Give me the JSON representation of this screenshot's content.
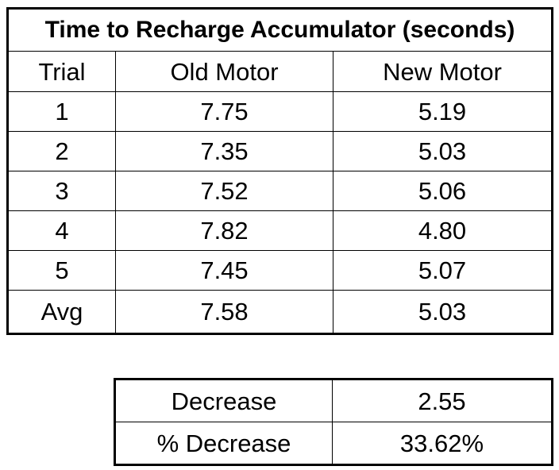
{
  "main_table": {
    "title": "Time to Recharge Accumulator (seconds)",
    "headers": [
      "Trial",
      "Old Motor",
      "New Motor"
    ],
    "rows": [
      [
        "1",
        "7.75",
        "5.19"
      ],
      [
        "2",
        "7.35",
        "5.03"
      ],
      [
        "3",
        "7.52",
        "5.06"
      ],
      [
        "4",
        "7.82",
        "4.80"
      ],
      [
        "5",
        "7.45",
        "5.07"
      ]
    ],
    "avg_row": [
      "Avg",
      "7.58",
      "5.03"
    ]
  },
  "summary_table": {
    "rows": [
      [
        "Decrease",
        "2.55"
      ],
      [
        "% Decrease",
        "33.62%"
      ]
    ]
  }
}
